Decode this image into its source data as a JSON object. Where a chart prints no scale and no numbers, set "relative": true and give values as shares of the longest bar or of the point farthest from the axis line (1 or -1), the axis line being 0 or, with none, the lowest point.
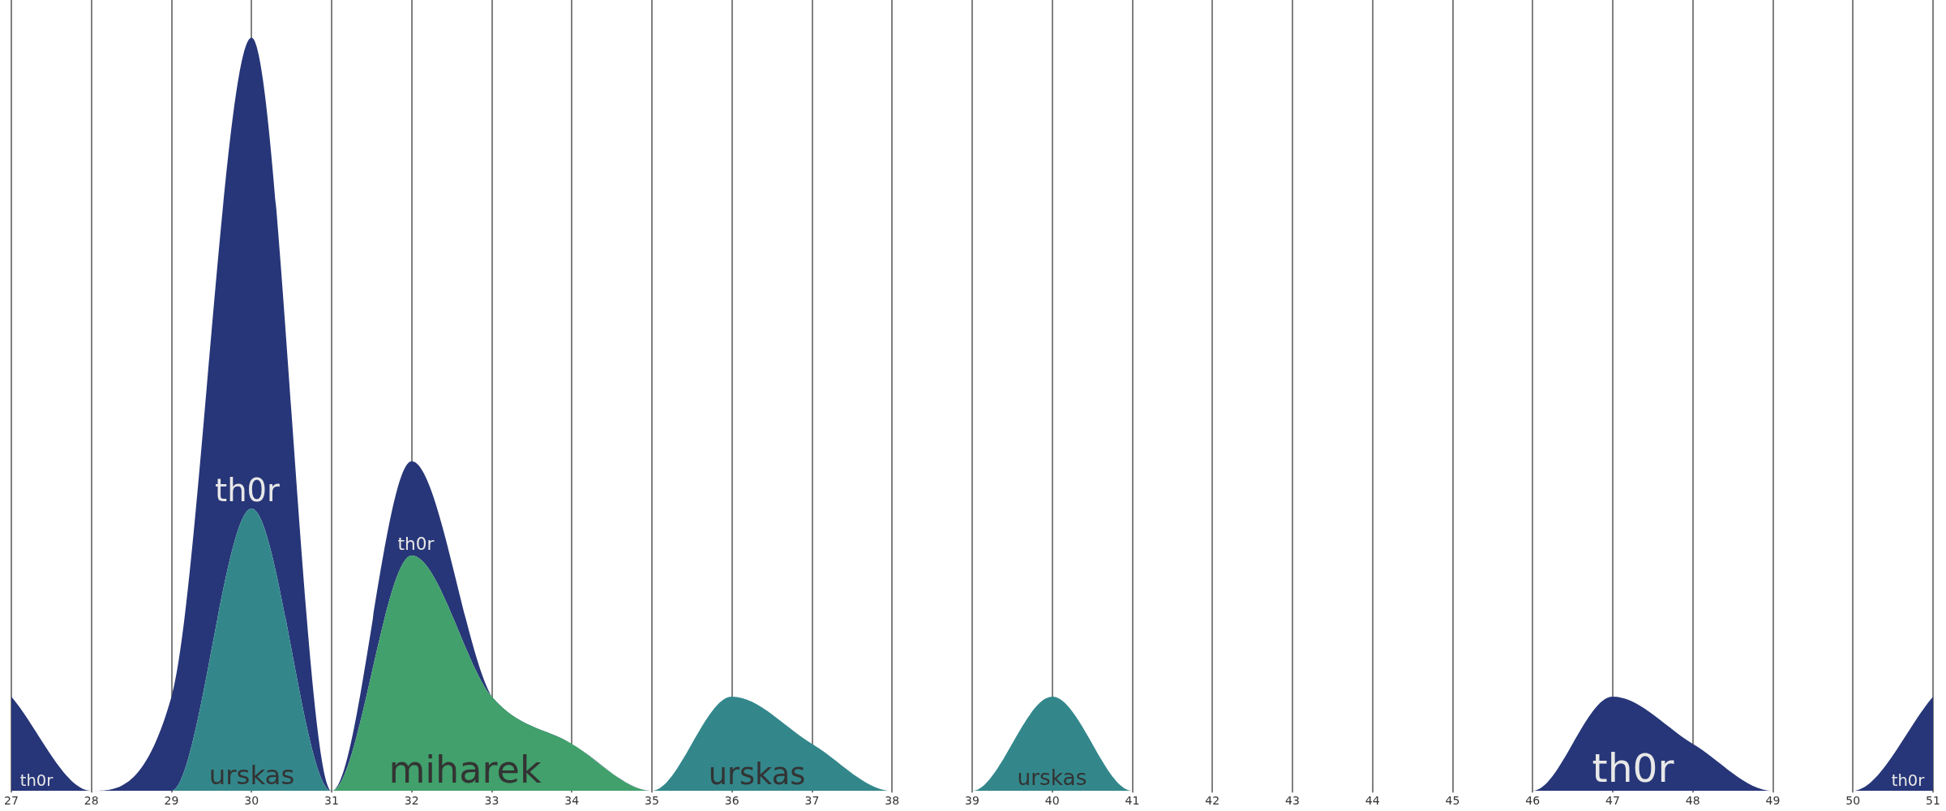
{
  "chart_data": {
    "type": "area",
    "stacked": true,
    "relative": true,
    "x": [
      27,
      28,
      29,
      30,
      31,
      32,
      33,
      34,
      35,
      36,
      37,
      38,
      39,
      40,
      41,
      42,
      43,
      44,
      45,
      46,
      47,
      48,
      49,
      50,
      51
    ],
    "xlim": [
      27,
      51
    ],
    "xticks": [
      27,
      28,
      29,
      30,
      31,
      32,
      33,
      34,
      35,
      36,
      37,
      38,
      39,
      40,
      41,
      42,
      43,
      44,
      45,
      46,
      47,
      48,
      49,
      50,
      51
    ],
    "grid": "x",
    "series": [
      {
        "name": "miharek",
        "color": "#41a06b",
        "values": [
          0,
          0,
          0,
          0,
          0,
          0.3125,
          0.125,
          0.0625,
          0,
          0,
          0,
          0,
          0,
          0,
          0,
          0,
          0,
          0,
          0,
          0,
          0,
          0,
          0,
          0,
          0
        ]
      },
      {
        "name": "urskas",
        "color": "#33878b",
        "values": [
          0,
          0,
          0,
          0.375,
          0,
          0,
          0,
          0,
          0,
          0.125,
          0.0625,
          0,
          0,
          0.125,
          0,
          0,
          0,
          0,
          0,
          0,
          0,
          0,
          0,
          0,
          0
        ]
      },
      {
        "name": "th0r",
        "color": "#273678",
        "values": [
          0.125,
          0,
          0.125,
          0.625,
          0,
          0.125,
          0,
          0,
          0,
          0,
          0,
          0,
          0,
          0,
          0,
          0,
          0,
          0,
          0,
          0,
          0.125,
          0.0625,
          0,
          0,
          0.125
        ]
      }
    ]
  }
}
